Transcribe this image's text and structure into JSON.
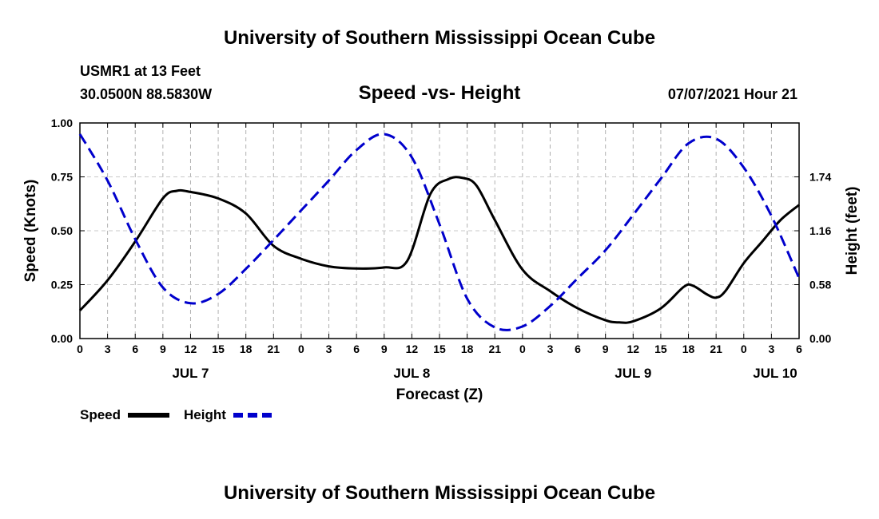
{
  "header": {
    "title": "University of Southern Mississippi Ocean Cube",
    "station": "USMR1 at 13 Feet",
    "coords": "30.0500N  88.5830W",
    "datetime": "07/07/2021 Hour 21"
  },
  "footer": {
    "title": "University of Southern Mississippi Ocean Cube"
  },
  "chart_data": {
    "type": "line",
    "title": "Speed -vs- Height",
    "xlabel": "Forecast (Z)",
    "ylabel": "Speed (Knots)",
    "y2label": "Height (feet)",
    "x_unit": "hours from JUL 7 00Z",
    "xlim": [
      0,
      78
    ],
    "ylim": [
      0,
      1.0
    ],
    "y2lim": [
      0,
      2.32
    ],
    "x_ticks": [
      {
        "x": 0,
        "label": "0"
      },
      {
        "x": 3,
        "label": "3"
      },
      {
        "x": 6,
        "label": "6"
      },
      {
        "x": 9,
        "label": "9"
      },
      {
        "x": 12,
        "label": "12"
      },
      {
        "x": 15,
        "label": "15"
      },
      {
        "x": 18,
        "label": "18"
      },
      {
        "x": 21,
        "label": "21"
      },
      {
        "x": 24,
        "label": "0"
      },
      {
        "x": 27,
        "label": "3"
      },
      {
        "x": 30,
        "label": "6"
      },
      {
        "x": 33,
        "label": "9"
      },
      {
        "x": 36,
        "label": "12"
      },
      {
        "x": 39,
        "label": "15"
      },
      {
        "x": 42,
        "label": "18"
      },
      {
        "x": 45,
        "label": "21"
      },
      {
        "x": 48,
        "label": "0"
      },
      {
        "x": 51,
        "label": "3"
      },
      {
        "x": 54,
        "label": "6"
      },
      {
        "x": 57,
        "label": "9"
      },
      {
        "x": 60,
        "label": "12"
      },
      {
        "x": 63,
        "label": "15"
      },
      {
        "x": 66,
        "label": "18"
      },
      {
        "x": 69,
        "label": "21"
      },
      {
        "x": 72,
        "label": "0"
      },
      {
        "x": 75,
        "label": "3"
      },
      {
        "x": 78,
        "label": "6"
      }
    ],
    "date_labels": [
      {
        "x": 12,
        "label": "JUL 7"
      },
      {
        "x": 36,
        "label": "JUL 8"
      },
      {
        "x": 60,
        "label": "JUL 9"
      },
      {
        "x": 75.4,
        "label": "JUL 10"
      }
    ],
    "y_ticks": [
      {
        "v": 0,
        "label": "0.00"
      },
      {
        "v": 0.25,
        "label": "0.25"
      },
      {
        "v": 0.5,
        "label": "0.50"
      },
      {
        "v": 0.75,
        "label": "0.75"
      },
      {
        "v": 1.0,
        "label": "1.00"
      }
    ],
    "y2_ticks": [
      {
        "v": 0,
        "label": "0.00"
      },
      {
        "v": 0.58,
        "label": "0.58"
      },
      {
        "v": 1.16,
        "label": "1.16"
      },
      {
        "v": 1.74,
        "label": "1.74"
      }
    ],
    "grid": true,
    "legend": {
      "placement": "bottom-left",
      "items": [
        {
          "name": "Speed",
          "color": "#000000",
          "style": "solid"
        },
        {
          "name": "Height",
          "color": "#0000cc",
          "style": "dashed"
        }
      ]
    },
    "series": [
      {
        "name": "Speed",
        "axis": "left",
        "color": "#000000",
        "style": "solid",
        "x": [
          0,
          3,
          6,
          9,
          10.5,
          12,
          15,
          18,
          21,
          24,
          27,
          30,
          33,
          35.5,
          38,
          40,
          41.5,
          43,
          45,
          48,
          51,
          54,
          57,
          58.5,
          60,
          63,
          65.5,
          66.5,
          68,
          69,
          70,
          72,
          74,
          76,
          78
        ],
        "values": [
          0.13,
          0.27,
          0.45,
          0.65,
          0.685,
          0.68,
          0.65,
          0.58,
          0.43,
          0.37,
          0.335,
          0.325,
          0.33,
          0.36,
          0.67,
          0.74,
          0.745,
          0.71,
          0.55,
          0.32,
          0.22,
          0.14,
          0.085,
          0.075,
          0.08,
          0.14,
          0.24,
          0.245,
          0.205,
          0.19,
          0.22,
          0.35,
          0.45,
          0.55,
          0.62
        ]
      },
      {
        "name": "Height",
        "axis": "right",
        "color": "#0000cc",
        "style": "dashed",
        "x": [
          0,
          3,
          6,
          9,
          12,
          15,
          18,
          21,
          24,
          27,
          30,
          33,
          36,
          39,
          42,
          45,
          48,
          51,
          54,
          57,
          60,
          63,
          66,
          69,
          72,
          75,
          78
        ],
        "values": [
          2.2,
          1.7,
          1.07,
          0.55,
          0.38,
          0.48,
          0.75,
          1.06,
          1.38,
          1.7,
          2.03,
          2.2,
          1.95,
          1.23,
          0.43,
          0.12,
          0.13,
          0.35,
          0.65,
          0.95,
          1.33,
          1.72,
          2.1,
          2.15,
          1.84,
          1.32,
          0.65
        ]
      }
    ]
  }
}
